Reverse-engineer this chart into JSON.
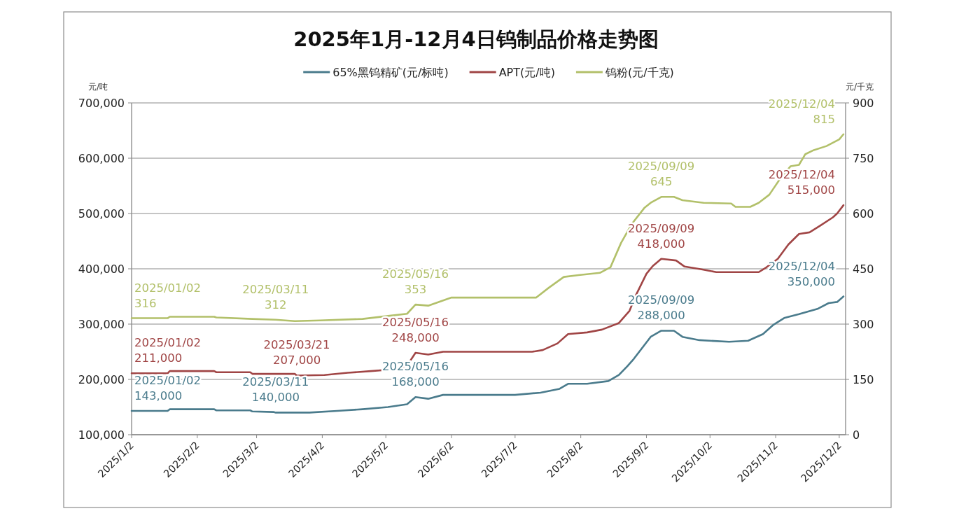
{
  "chart_data": {
    "type": "line",
    "title": "2025年1月-12月4日钨制品价格走势图",
    "ylabel": "元/吨",
    "y2label": "元/千克",
    "legend": "top",
    "grid": "y",
    "xlim": [
      "2025-01-02",
      "2025-12-05"
    ],
    "xticks": [
      {
        "value": "2025-01-02",
        "label": "2025/1/2"
      },
      {
        "value": "2025-02-02",
        "label": "2025/2/2"
      },
      {
        "value": "2025-03-02",
        "label": "2025/3/2"
      },
      {
        "value": "2025-04-02",
        "label": "2025/4/2"
      },
      {
        "value": "2025-05-02",
        "label": "2025/5/2"
      },
      {
        "value": "2025-06-02",
        "label": "2025/6/2"
      },
      {
        "value": "2025-07-02",
        "label": "2025/7/2"
      },
      {
        "value": "2025-08-02",
        "label": "2025/8/2"
      },
      {
        "value": "2025-09-02",
        "label": "2025/9/2"
      },
      {
        "value": "2025-10-02",
        "label": "2025/10/2"
      },
      {
        "value": "2025-11-02",
        "label": "2025/11/2"
      },
      {
        "value": "2025-12-02",
        "label": "2025/12/2"
      }
    ],
    "ylim": [
      100000,
      700000
    ],
    "yticks": [
      {
        "value": 100000,
        "label": "100,000"
      },
      {
        "value": 200000,
        "label": "200,000"
      },
      {
        "value": 300000,
        "label": "300,000"
      },
      {
        "value": 400000,
        "label": "400,000"
      },
      {
        "value": 500000,
        "label": "500,000"
      },
      {
        "value": 600000,
        "label": "600,000"
      },
      {
        "value": 700000,
        "label": "700,000"
      }
    ],
    "y2lim": [
      0,
      900
    ],
    "y2ticks": [
      0,
      150,
      300,
      450,
      600,
      750,
      900
    ],
    "series": [
      {
        "name": "65%黑钨精矿(元/标吨)",
        "color": "#4a7b8c",
        "x": [
          "2025-01-02",
          "2025-01-19",
          "2025-01-20",
          "2025-02-10",
          "2025-02-11",
          "2025-02-27",
          "2025-02-28",
          "2025-03-10",
          "2025-03-11",
          "2025-03-27",
          "2025-04-09",
          "2025-04-21",
          "2025-05-03",
          "2025-05-12",
          "2025-05-16",
          "2025-05-22",
          "2025-05-29",
          "2025-07-02",
          "2025-07-14",
          "2025-07-23",
          "2025-07-27",
          "2025-08-05",
          "2025-08-15",
          "2025-08-20",
          "2025-08-24",
          "2025-08-27",
          "2025-09-04",
          "2025-09-09",
          "2025-09-15",
          "2025-09-19",
          "2025-09-27",
          "2025-10-11",
          "2025-10-20",
          "2025-10-27",
          "2025-11-01",
          "2025-11-06",
          "2025-11-13",
          "2025-11-22",
          "2025-11-27",
          "2025-12-01",
          "2025-12-04"
        ],
        "values": [
          143000,
          143000,
          146000,
          146000,
          144000,
          144000,
          142000,
          141000,
          140000,
          140000,
          143000,
          146000,
          150000,
          155000,
          168000,
          165000,
          172000,
          172000,
          176000,
          183000,
          192000,
          192000,
          197000,
          208000,
          224000,
          237000,
          277000,
          288000,
          288000,
          277000,
          271000,
          268000,
          270000,
          282000,
          299000,
          311000,
          318000,
          328000,
          338000,
          340000,
          350000
        ],
        "value_labels": [
          "2025/01/02\n143,000",
          null,
          null,
          null,
          null,
          null,
          null,
          null,
          "2025/03/11\n140,000",
          null,
          null,
          null,
          null,
          null,
          "2025/05/16\n168,000",
          null,
          null,
          null,
          null,
          null,
          null,
          null,
          null,
          null,
          null,
          null,
          null,
          "2025/09/09\n288,000",
          null,
          null,
          null,
          null,
          null,
          null,
          null,
          null,
          null,
          null,
          null,
          null,
          "2025/12/04\n350,000"
        ]
      },
      {
        "name": "APT(元/吨)",
        "color": "#a04545",
        "x": [
          "2025-01-02",
          "2025-01-19",
          "2025-01-20",
          "2025-02-10",
          "2025-02-11",
          "2025-02-27",
          "2025-02-28",
          "2025-03-20",
          "2025-03-21",
          "2025-04-03",
          "2025-04-14",
          "2025-04-25",
          "2025-05-05",
          "2025-05-12",
          "2025-05-16",
          "2025-05-22",
          "2025-05-29",
          "2025-07-10",
          "2025-07-15",
          "2025-07-22",
          "2025-07-27",
          "2025-08-05",
          "2025-08-12",
          "2025-08-20",
          "2025-08-25",
          "2025-08-28",
          "2025-09-02",
          "2025-09-05",
          "2025-09-09",
          "2025-09-16",
          "2025-09-20",
          "2025-09-28",
          "2025-10-05",
          "2025-10-25",
          "2025-10-28",
          "2025-11-03",
          "2025-11-08",
          "2025-11-13",
          "2025-11-18",
          "2025-11-23",
          "2025-11-29",
          "2025-12-01",
          "2025-12-04"
        ],
        "values": [
          211000,
          211000,
          215000,
          215000,
          213000,
          213000,
          210000,
          210000,
          207000,
          208000,
          212000,
          215000,
          218000,
          225000,
          248000,
          245000,
          250000,
          250000,
          253000,
          265000,
          282000,
          285000,
          290000,
          302000,
          324000,
          352000,
          391000,
          405000,
          418000,
          415000,
          404000,
          399000,
          394000,
          394000,
          401000,
          418000,
          444000,
          463000,
          466000,
          478000,
          493000,
          500000,
          515000
        ],
        "value_labels": [
          "2025/01/02\n211,000",
          null,
          null,
          null,
          null,
          null,
          null,
          null,
          "2025/03/21\n207,000",
          null,
          null,
          null,
          null,
          null,
          "2025/05/16\n248,000",
          null,
          null,
          null,
          null,
          null,
          null,
          null,
          null,
          null,
          null,
          null,
          null,
          null,
          "2025/09/09\n418,000",
          null,
          null,
          null,
          null,
          null,
          null,
          null,
          null,
          null,
          null,
          null,
          null,
          null,
          "2025/12/04\n515,000"
        ]
      },
      {
        "name": "钨粉(元/千克)",
        "color": "#b2c06a",
        "axis": "y2",
        "x": [
          "2025-01-02",
          "2025-01-19",
          "2025-01-20",
          "2025-02-10",
          "2025-02-11",
          "2025-02-28",
          "2025-03-11",
          "2025-03-20",
          "2025-04-01",
          "2025-04-21",
          "2025-05-03",
          "2025-05-12",
          "2025-05-16",
          "2025-05-22",
          "2025-06-02",
          "2025-07-12",
          "2025-07-18",
          "2025-07-25",
          "2025-08-01",
          "2025-08-11",
          "2025-08-16",
          "2025-08-21",
          "2025-08-26",
          "2025-09-01",
          "2025-09-04",
          "2025-09-09",
          "2025-09-15",
          "2025-09-19",
          "2025-09-29",
          "2025-10-12",
          "2025-10-14",
          "2025-10-21",
          "2025-10-25",
          "2025-10-30",
          "2025-11-05",
          "2025-11-09",
          "2025-11-13",
          "2025-11-16",
          "2025-11-20",
          "2025-11-26",
          "2025-12-02",
          "2025-12-04"
        ],
        "values": [
          316,
          316,
          320,
          320,
          318,
          314,
          312,
          308,
          310,
          314,
          322,
          328,
          353,
          350,
          372,
          372,
          399,
          428,
          433,
          439,
          454,
          520,
          571,
          615,
          629,
          645,
          645,
          636,
          629,
          627,
          618,
          618,
          629,
          651,
          702,
          728,
          732,
          761,
          772,
          783,
          801,
          815
        ],
        "value_labels": [
          "2025/01/02\n316",
          null,
          null,
          null,
          null,
          null,
          "2025/03/11\n312",
          null,
          null,
          null,
          null,
          null,
          "2025/05/16\n353",
          null,
          null,
          null,
          null,
          null,
          null,
          null,
          null,
          null,
          null,
          null,
          null,
          "2025/09/09\n645",
          null,
          null,
          null,
          null,
          null,
          null,
          null,
          null,
          null,
          null,
          null,
          null,
          null,
          null,
          null,
          "2025/12/04\n815"
        ]
      }
    ]
  }
}
